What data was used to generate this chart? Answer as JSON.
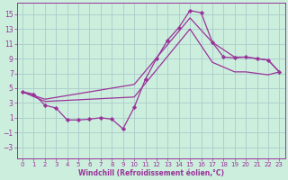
{
  "background_color": "#cceedd",
  "grid_color": "#aacccc",
  "line_color": "#993399",
  "marker_color": "#993399",
  "xlabel": "Windchill (Refroidissement éolien,°C)",
  "xlim": [
    -0.5,
    23.5
  ],
  "ylim": [
    -4.5,
    16.5
  ],
  "yticks": [
    -3,
    -1,
    1,
    3,
    5,
    7,
    9,
    11,
    13,
    15
  ],
  "xticks": [
    0,
    1,
    2,
    3,
    4,
    5,
    6,
    7,
    8,
    9,
    10,
    11,
    12,
    13,
    14,
    15,
    16,
    17,
    18,
    19,
    20,
    21,
    22,
    23
  ],
  "series": {
    "zigzag": {
      "x": [
        0,
        1,
        2,
        3,
        4,
        5,
        6,
        7,
        8,
        9,
        10,
        11,
        12,
        13,
        14,
        15,
        16,
        17,
        18,
        19,
        20,
        21,
        22,
        23
      ],
      "y": [
        4.5,
        4.2,
        2.7,
        2.3,
        0.7,
        0.7,
        0.8,
        1.0,
        0.8,
        -0.5,
        2.4,
        6.2,
        9.0,
        11.5,
        13.2,
        15.5,
        15.2,
        11.2,
        9.2,
        9.1,
        9.2,
        9.0,
        8.8,
        7.2
      ]
    },
    "upper": {
      "x": [
        0,
        2,
        10,
        15,
        17,
        19,
        20,
        21,
        22,
        23
      ],
      "y": [
        4.5,
        3.5,
        5.5,
        14.5,
        11.2,
        9.2,
        9.2,
        9.0,
        8.8,
        7.2
      ]
    },
    "lower": {
      "x": [
        0,
        2,
        10,
        15,
        17,
        19,
        20,
        21,
        22,
        23
      ],
      "y": [
        4.5,
        3.2,
        3.8,
        13.0,
        8.5,
        7.2,
        7.2,
        7.0,
        6.8,
        7.2
      ]
    }
  }
}
